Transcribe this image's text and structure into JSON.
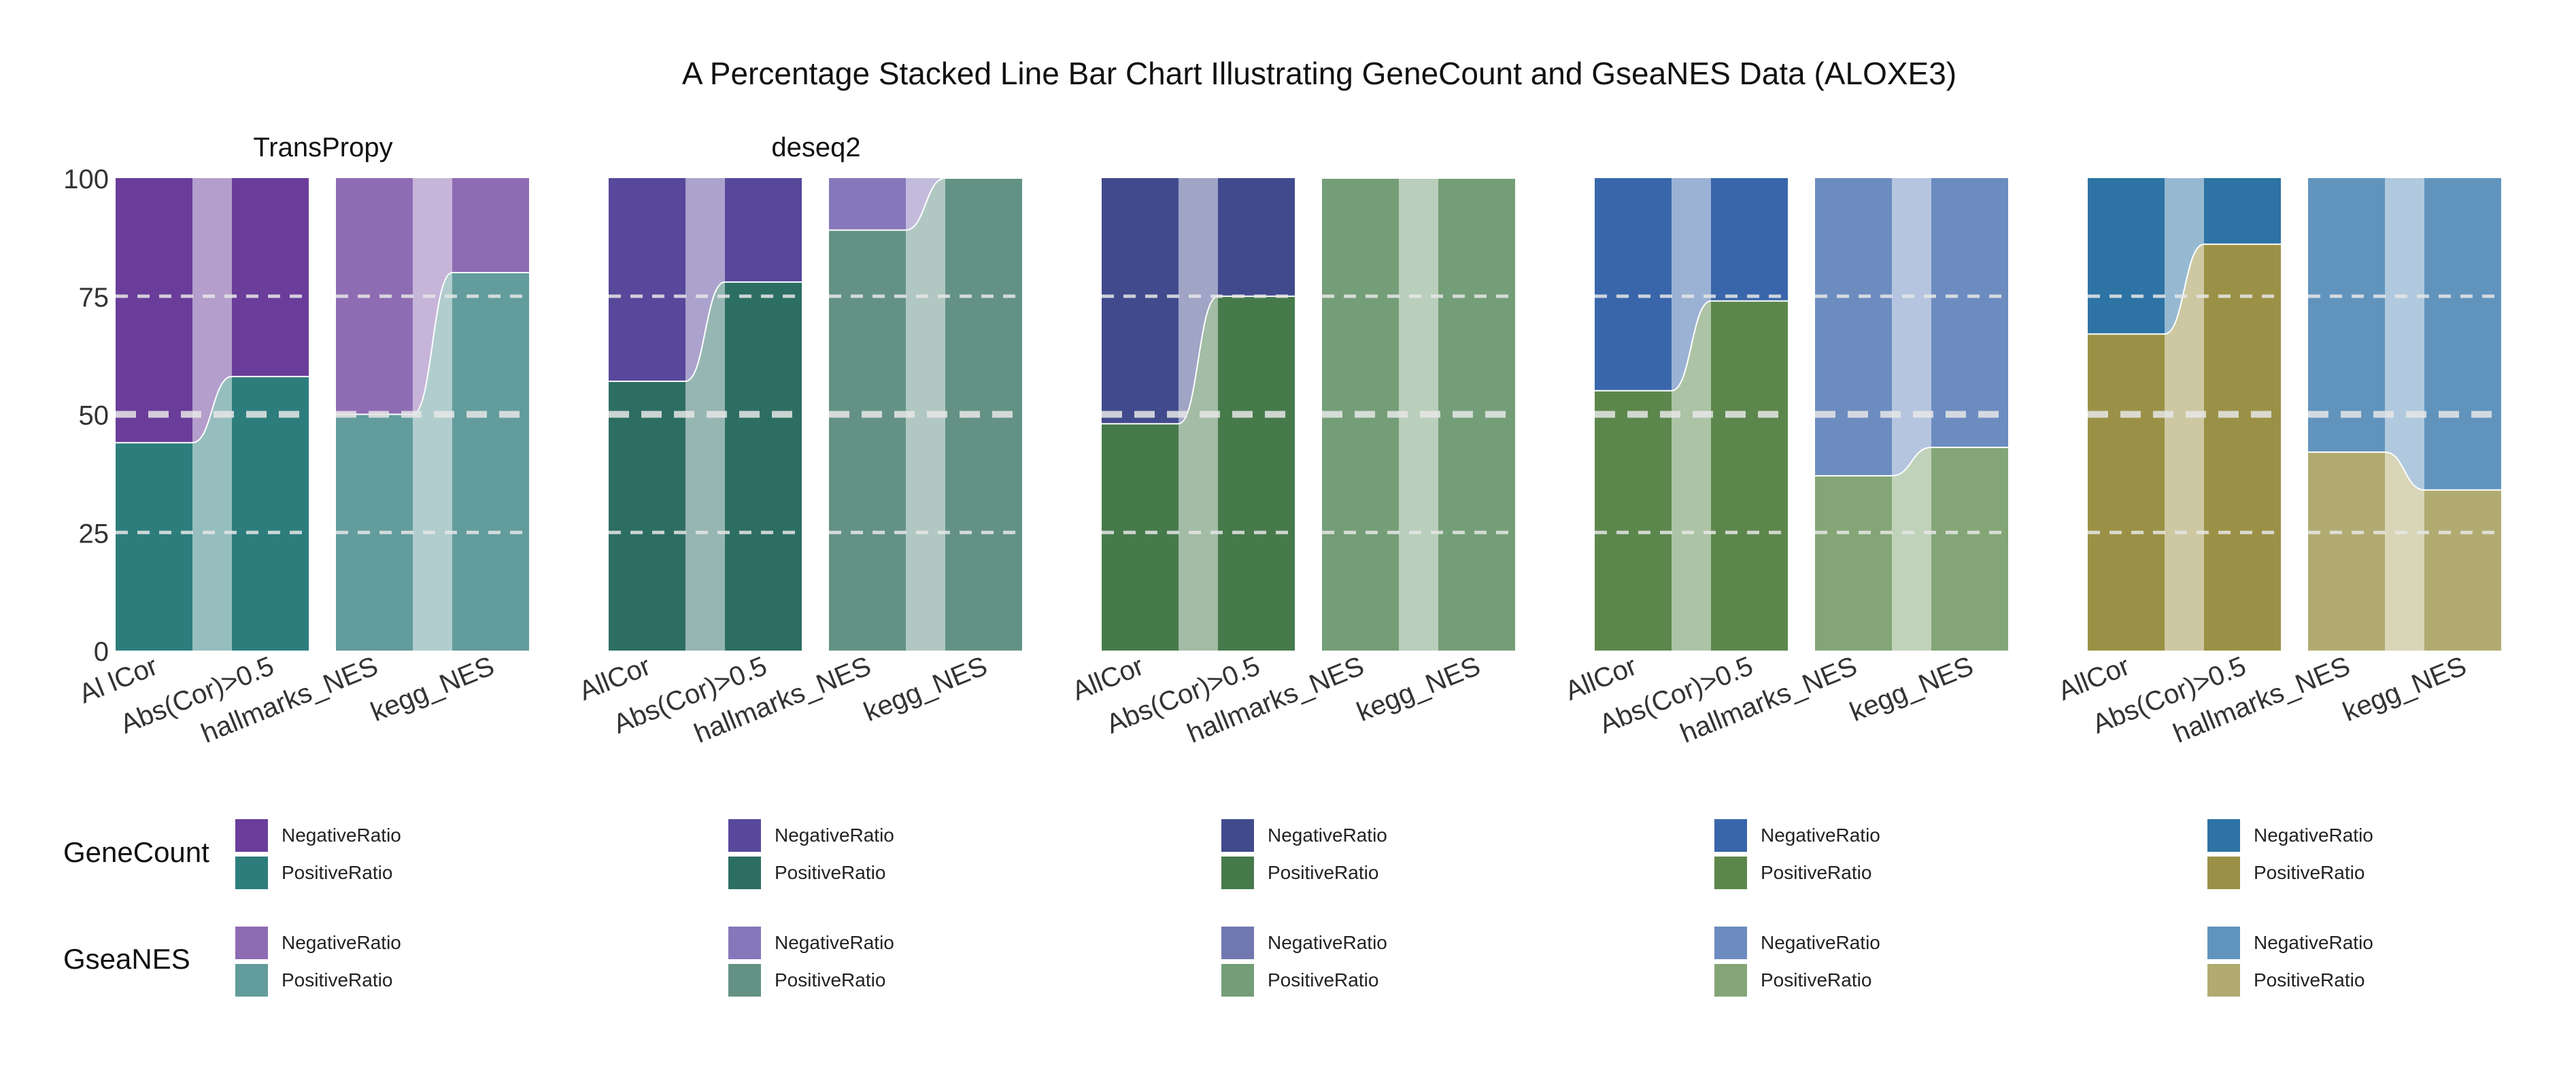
{
  "chart_data": {
    "type": "percentage-stacked-line-bar",
    "title": "A Percentage Stacked Line Bar Chart Illustrating GeneCount and GseaNES Data (ALOXE3)",
    "ylim": [
      0,
      100
    ],
    "yticks": [
      0,
      25,
      50,
      75,
      100
    ],
    "grid": "dashed horizontal lines at 25, 50, 75",
    "row_labels": [
      "GeneCount",
      "GseaNES"
    ],
    "legend_labels": [
      "NegativeRatio",
      "PositiveRatio"
    ],
    "panels": [
      {
        "title": "TransPropy",
        "colors": {
          "gene_neg": "#6A3D9A",
          "gene_pos": "#2E7D7D",
          "gsea_neg": "#8E6CB3",
          "gsea_pos": "#639C9C"
        },
        "genecount": {
          "categories": [
            "Al lCor",
            "Abs(Cor)>0.5"
          ],
          "PositiveRatio": [
            44,
            58
          ],
          "NegativeRatio": [
            56,
            42
          ]
        },
        "gseanes": {
          "categories": [
            "hallmarks_NES",
            "kegg_NES"
          ],
          "PositiveRatio": [
            50,
            80
          ],
          "NegativeRatio": [
            50,
            20
          ]
        }
      },
      {
        "title": "deseq2",
        "colors": {
          "gene_neg": "#57489B",
          "gene_pos": "#2D6E63",
          "gsea_neg": "#8577BA",
          "gsea_pos": "#639285"
        },
        "genecount": {
          "categories": [
            "AllCor",
            "Abs(Cor)>0.5"
          ],
          "PositiveRatio": [
            57,
            78
          ],
          "NegativeRatio": [
            43,
            22
          ]
        },
        "gseanes": {
          "categories": [
            "hallmarks_NES",
            "kegg_NES"
          ],
          "PositiveRatio": [
            89,
            100
          ],
          "NegativeRatio": [
            11,
            0
          ]
        }
      },
      {
        "title": "",
        "colors": {
          "gene_neg": "#414A8C",
          "gene_pos": "#467A4B",
          "gsea_neg": "#7178B0",
          "gsea_pos": "#749E77"
        },
        "genecount": {
          "categories": [
            "AllCor",
            "Abs(Cor)>0.5"
          ],
          "PositiveRatio": [
            48,
            75
          ],
          "NegativeRatio": [
            52,
            25
          ]
        },
        "gseanes": {
          "categories": [
            "hallmarks_NES",
            "kegg_NES"
          ],
          "PositiveRatio": [
            100,
            100
          ],
          "NegativeRatio": [
            0,
            0
          ]
        }
      },
      {
        "title": "",
        "colors": {
          "gene_neg": "#3966AA",
          "gene_pos": "#5C874C",
          "gsea_neg": "#6C8CC0",
          "gsea_pos": "#84A677"
        },
        "genecount": {
          "categories": [
            "AllCor",
            "Abs(Cor)>0.5"
          ],
          "PositiveRatio": [
            55,
            74
          ],
          "NegativeRatio": [
            45,
            26
          ]
        },
        "gseanes": {
          "categories": [
            "hallmarks_NES",
            "kegg_NES"
          ],
          "PositiveRatio": [
            37,
            43
          ],
          "NegativeRatio": [
            63,
            57
          ]
        }
      },
      {
        "title": "",
        "colors": {
          "gene_neg": "#2D73A4",
          "gene_pos": "#9B9146",
          "gsea_neg": "#6194BD",
          "gsea_pos": "#B1AB72"
        },
        "genecount": {
          "categories": [
            "AllCor",
            "Abs(Cor)>0.5"
          ],
          "PositiveRatio": [
            67,
            86
          ],
          "NegativeRatio": [
            33,
            14
          ]
        },
        "gseanes": {
          "categories": [
            "hallmarks_NES",
            "kegg_NES"
          ],
          "PositiveRatio": [
            42,
            34
          ],
          "NegativeRatio": [
            58,
            66
          ]
        }
      }
    ]
  }
}
